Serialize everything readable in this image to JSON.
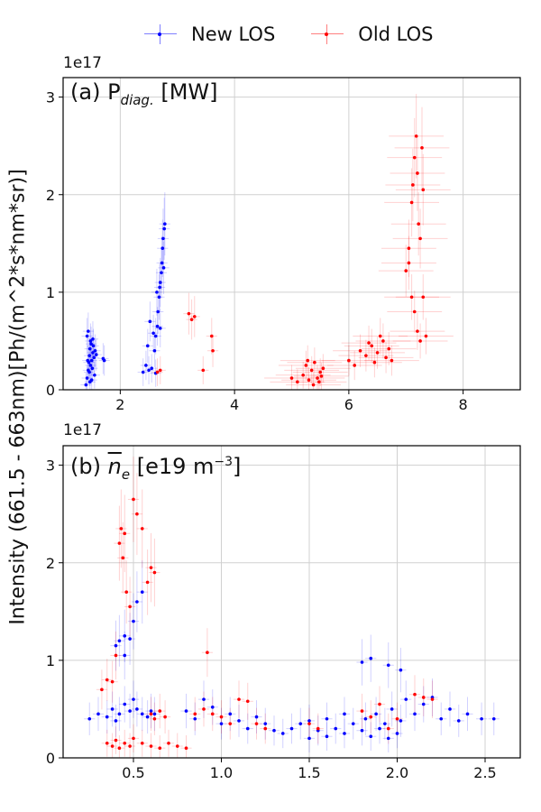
{
  "chart_data": [
    {
      "type": "scatter",
      "panel": "a",
      "title_main": "(a) P",
      "title_sub": "diag.",
      "title_tail": "[MW]",
      "sci_label": "1e17",
      "xlim": [
        1.0,
        9.0
      ],
      "ylim": [
        0,
        3.2
      ],
      "xticks": [
        2,
        4,
        6,
        8
      ],
      "xtick_labels": [
        "2",
        "4",
        "6",
        "8"
      ],
      "yticks": [
        0,
        1,
        2,
        3
      ],
      "ytick_labels": [
        "0",
        "1",
        "2",
        "3"
      ],
      "grid": true,
      "series": [
        {
          "name": "New LOS",
          "color": "#0000ff",
          "points": [
            [
              1.4,
              0.05
            ],
            [
              1.42,
              0.12
            ],
            [
              1.44,
              0.2
            ],
            [
              1.45,
              0.28
            ],
            [
              1.46,
              0.35
            ],
            [
              1.47,
              0.42
            ],
            [
              1.48,
              0.5
            ],
            [
              1.5,
              0.3
            ],
            [
              1.51,
              0.22
            ],
            [
              1.52,
              0.38
            ],
            [
              1.53,
              0.45
            ],
            [
              1.55,
              0.15
            ],
            [
              1.56,
              0.4
            ],
            [
              1.42,
              0.55
            ],
            [
              1.44,
              0.6
            ],
            [
              1.48,
              0.25
            ],
            [
              1.5,
              0.1
            ],
            [
              1.54,
              0.33
            ],
            [
              1.58,
              0.36
            ],
            [
              1.46,
              0.18
            ],
            [
              1.49,
              0.47
            ],
            [
              1.43,
              0.3
            ],
            [
              1.52,
              0.52
            ],
            [
              1.47,
              0.08
            ],
            [
              1.7,
              0.32
            ],
            [
              1.72,
              0.3
            ],
            [
              2.4,
              0.18
            ],
            [
              2.45,
              0.25
            ],
            [
              2.5,
              0.2
            ],
            [
              2.55,
              0.22
            ],
            [
              2.62,
              0.17
            ],
            [
              2.6,
              0.4
            ],
            [
              2.62,
              0.55
            ],
            [
              2.65,
              0.65
            ],
            [
              2.66,
              0.8
            ],
            [
              2.68,
              0.95
            ],
            [
              2.69,
              1.05
            ],
            [
              2.7,
              1.1
            ],
            [
              2.72,
              1.2
            ],
            [
              2.73,
              1.3
            ],
            [
              2.74,
              1.45
            ],
            [
              2.75,
              1.55
            ],
            [
              2.77,
              1.65
            ],
            [
              2.78,
              1.7
            ],
            [
              2.7,
              0.63
            ],
            [
              2.76,
              1.25
            ],
            [
              2.64,
              1.0
            ],
            [
              2.58,
              0.58
            ],
            [
              2.52,
              0.7
            ],
            [
              2.48,
              0.45
            ]
          ]
        },
        {
          "name": "Old LOS",
          "color": "#ff0000",
          "points": [
            [
              2.65,
              0.18
            ],
            [
              2.7,
              0.2
            ],
            [
              3.2,
              0.78
            ],
            [
              3.25,
              0.72
            ],
            [
              3.3,
              0.75
            ],
            [
              3.45,
              0.2
            ],
            [
              3.6,
              0.55
            ],
            [
              3.62,
              0.4
            ],
            [
              5.0,
              0.12
            ],
            [
              5.1,
              0.08
            ],
            [
              5.2,
              0.15
            ],
            [
              5.25,
              0.25
            ],
            [
              5.3,
              0.1
            ],
            [
              5.35,
              0.2
            ],
            [
              5.4,
              0.28
            ],
            [
              5.45,
              0.12
            ],
            [
              5.5,
              0.18
            ],
            [
              5.55,
              0.22
            ],
            [
              5.38,
              0.05
            ],
            [
              5.28,
              0.3
            ],
            [
              5.48,
              0.08
            ],
            [
              5.52,
              0.14
            ],
            [
              6.0,
              0.3
            ],
            [
              6.1,
              0.25
            ],
            [
              6.2,
              0.4
            ],
            [
              6.3,
              0.35
            ],
            [
              6.4,
              0.45
            ],
            [
              6.5,
              0.38
            ],
            [
              6.6,
              0.5
            ],
            [
              6.7,
              0.42
            ],
            [
              6.75,
              0.3
            ],
            [
              6.55,
              0.55
            ],
            [
              6.45,
              0.28
            ],
            [
              6.35,
              0.48
            ],
            [
              6.65,
              0.33
            ],
            [
              7.0,
              1.22
            ],
            [
              7.05,
              1.45
            ],
            [
              7.1,
              1.92
            ],
            [
              7.12,
              2.1
            ],
            [
              7.15,
              2.38
            ],
            [
              7.18,
              2.6
            ],
            [
              7.2,
              2.22
            ],
            [
              7.22,
              1.7
            ],
            [
              7.25,
              1.55
            ],
            [
              7.28,
              2.48
            ],
            [
              7.3,
              2.05
            ],
            [
              7.1,
              0.95
            ],
            [
              7.15,
              0.8
            ],
            [
              7.2,
              0.6
            ],
            [
              7.25,
              0.5
            ],
            [
              7.35,
              0.55
            ],
            [
              7.05,
              1.3
            ],
            [
              7.3,
              0.95
            ]
          ]
        }
      ]
    },
    {
      "type": "scatter",
      "panel": "b",
      "title_main": "(b)",
      "title_var": "n",
      "title_var_sub": "e",
      "title_tail": "[e19 m",
      "title_exp": "−3",
      "title_close": "]",
      "sci_label": "1e17",
      "xlim": [
        0.1,
        2.7
      ],
      "ylim": [
        0,
        3.2
      ],
      "xticks": [
        0.5,
        1.0,
        1.5,
        2.0,
        2.5
      ],
      "xtick_labels": [
        "0.5",
        "1.0",
        "1.5",
        "2.0",
        "2.5"
      ],
      "yticks": [
        0,
        1,
        2,
        3
      ],
      "ytick_labels": [
        "0",
        "1",
        "2",
        "3"
      ],
      "grid": true,
      "series": [
        {
          "name": "New LOS",
          "color": "#0000ff",
          "points": [
            [
              0.25,
              0.4
            ],
            [
              0.3,
              0.45
            ],
            [
              0.35,
              0.42
            ],
            [
              0.38,
              0.5
            ],
            [
              0.4,
              0.38
            ],
            [
              0.42,
              0.45
            ],
            [
              0.45,
              0.55
            ],
            [
              0.48,
              0.48
            ],
            [
              0.5,
              0.6
            ],
            [
              0.52,
              0.5
            ],
            [
              0.55,
              0.45
            ],
            [
              0.58,
              0.42
            ],
            [
              0.6,
              0.48
            ],
            [
              0.62,
              0.45
            ],
            [
              0.4,
              1.15
            ],
            [
              0.42,
              1.2
            ],
            [
              0.45,
              1.25
            ],
            [
              0.48,
              1.22
            ],
            [
              0.5,
              1.4
            ],
            [
              0.52,
              1.6
            ],
            [
              0.55,
              1.7
            ],
            [
              0.45,
              1.05
            ],
            [
              0.8,
              0.48
            ],
            [
              0.85,
              0.4
            ],
            [
              0.9,
              0.6
            ],
            [
              0.95,
              0.52
            ],
            [
              1.0,
              0.35
            ],
            [
              1.05,
              0.45
            ],
            [
              1.1,
              0.38
            ],
            [
              1.15,
              0.3
            ],
            [
              1.2,
              0.42
            ],
            [
              1.25,
              0.35
            ],
            [
              1.3,
              0.28
            ],
            [
              1.35,
              0.25
            ],
            [
              1.4,
              0.3
            ],
            [
              1.45,
              0.35
            ],
            [
              1.5,
              0.2
            ],
            [
              1.55,
              0.28
            ],
            [
              1.6,
              0.22
            ],
            [
              1.65,
              0.3
            ],
            [
              1.7,
              0.25
            ],
            [
              1.75,
              0.35
            ],
            [
              1.8,
              0.28
            ],
            [
              1.85,
              0.22
            ],
            [
              1.9,
              0.3
            ],
            [
              1.95,
              0.2
            ],
            [
              2.0,
              0.25
            ],
            [
              1.82,
              0.4
            ],
            [
              1.88,
              0.45
            ],
            [
              1.93,
              0.35
            ],
            [
              1.97,
              0.5
            ],
            [
              2.02,
              0.38
            ],
            [
              2.05,
              0.6
            ],
            [
              2.1,
              0.45
            ],
            [
              2.15,
              0.55
            ],
            [
              2.2,
              0.62
            ],
            [
              2.25,
              0.4
            ],
            [
              2.3,
              0.5
            ],
            [
              2.35,
              0.38
            ],
            [
              2.4,
              0.45
            ],
            [
              2.48,
              0.4
            ],
            [
              2.55,
              0.4
            ],
            [
              1.8,
              0.98
            ],
            [
              1.85,
              1.02
            ],
            [
              1.95,
              0.95
            ],
            [
              2.02,
              0.9
            ],
            [
              1.7,
              0.45
            ],
            [
              1.6,
              0.4
            ],
            [
              1.5,
              0.38
            ]
          ]
        },
        {
          "name": "Old LOS",
          "color": "#ff0000",
          "points": [
            [
              0.32,
              0.7
            ],
            [
              0.35,
              0.8
            ],
            [
              0.38,
              0.78
            ],
            [
              0.4,
              1.05
            ],
            [
              0.42,
              2.2
            ],
            [
              0.43,
              2.35
            ],
            [
              0.44,
              2.05
            ],
            [
              0.45,
              2.3
            ],
            [
              0.46,
              1.7
            ],
            [
              0.48,
              1.55
            ],
            [
              0.5,
              2.65
            ],
            [
              0.52,
              2.5
            ],
            [
              0.55,
              2.35
            ],
            [
              0.58,
              1.8
            ],
            [
              0.6,
              1.95
            ],
            [
              0.62,
              1.9
            ],
            [
              0.6,
              0.45
            ],
            [
              0.62,
              0.4
            ],
            [
              0.65,
              0.48
            ],
            [
              0.68,
              0.42
            ],
            [
              0.35,
              0.15
            ],
            [
              0.38,
              0.12
            ],
            [
              0.4,
              0.18
            ],
            [
              0.42,
              0.1
            ],
            [
              0.45,
              0.15
            ],
            [
              0.48,
              0.12
            ],
            [
              0.5,
              0.2
            ],
            [
              0.55,
              0.15
            ],
            [
              0.6,
              0.12
            ],
            [
              0.65,
              0.1
            ],
            [
              0.7,
              0.15
            ],
            [
              0.75,
              0.12
            ],
            [
              0.8,
              0.1
            ],
            [
              0.85,
              0.45
            ],
            [
              0.9,
              0.5
            ],
            [
              0.92,
              1.08
            ],
            [
              0.95,
              0.45
            ],
            [
              1.0,
              0.42
            ],
            [
              1.05,
              0.35
            ],
            [
              1.1,
              0.6
            ],
            [
              1.15,
              0.58
            ],
            [
              1.2,
              0.35
            ],
            [
              1.25,
              0.3
            ],
            [
              1.5,
              0.35
            ],
            [
              1.55,
              0.3
            ],
            [
              1.8,
              0.48
            ],
            [
              1.85,
              0.42
            ],
            [
              1.9,
              0.55
            ],
            [
              1.95,
              0.3
            ],
            [
              2.0,
              0.4
            ],
            [
              2.1,
              0.65
            ],
            [
              2.15,
              0.62
            ],
            [
              2.2,
              0.6
            ]
          ]
        }
      ]
    }
  ],
  "ylabel": "Intensity (661.5 - 663nm)[Ph/(m^2*s*nm*sr)]",
  "legend": [
    {
      "label": "New LOS",
      "color": "#0000ff"
    },
    {
      "label": "Old LOS",
      "color": "#ff0000"
    }
  ]
}
